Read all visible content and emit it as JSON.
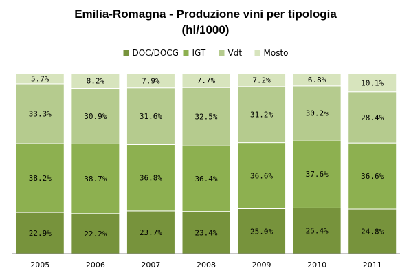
{
  "chart_data": {
    "type": "bar",
    "stacked": true,
    "percent": true,
    "title_line1": "Emilia-Romagna - Produzione vini per tipologia",
    "title_line2": "(hl/1000)",
    "categories": [
      "2005",
      "2006",
      "2007",
      "2008",
      "2009",
      "2010",
      "2011"
    ],
    "series": [
      {
        "name": "DOC/DOCG",
        "color": "#77933C",
        "values": [
          22.9,
          22.2,
          23.7,
          23.4,
          25.0,
          25.4,
          24.8
        ],
        "labels": [
          "22.9%",
          "22.2%",
          "23.7%",
          "23.4%",
          "25.0%",
          "25.4%",
          "24.8%"
        ]
      },
      {
        "name": "IGT",
        "color": "#8DB050",
        "values": [
          38.2,
          38.7,
          36.8,
          36.4,
          36.6,
          37.6,
          36.6
        ],
        "labels": [
          "38.2%",
          "38.7%",
          "36.8%",
          "36.4%",
          "36.6%",
          "37.6%",
          "36.6%"
        ]
      },
      {
        "name": "Vdt",
        "color": "#B5CB8E",
        "values": [
          33.3,
          30.9,
          31.6,
          32.5,
          31.2,
          30.2,
          28.4
        ],
        "labels": [
          "33.3%",
          "30.9%",
          "31.6%",
          "32.5%",
          "31.2%",
          "30.2%",
          "28.4%"
        ]
      },
      {
        "name": "Mosto",
        "color": "#D7E4BD",
        "values": [
          5.7,
          8.2,
          7.9,
          7.7,
          7.2,
          6.8,
          10.1
        ],
        "labels": [
          "5.7%",
          "8.2%",
          "7.9%",
          "7.7%",
          "7.2%",
          "6.8%",
          "10.1%"
        ]
      }
    ],
    "ylim": [
      0,
      100
    ],
    "grid": false,
    "legend_position": "top"
  }
}
